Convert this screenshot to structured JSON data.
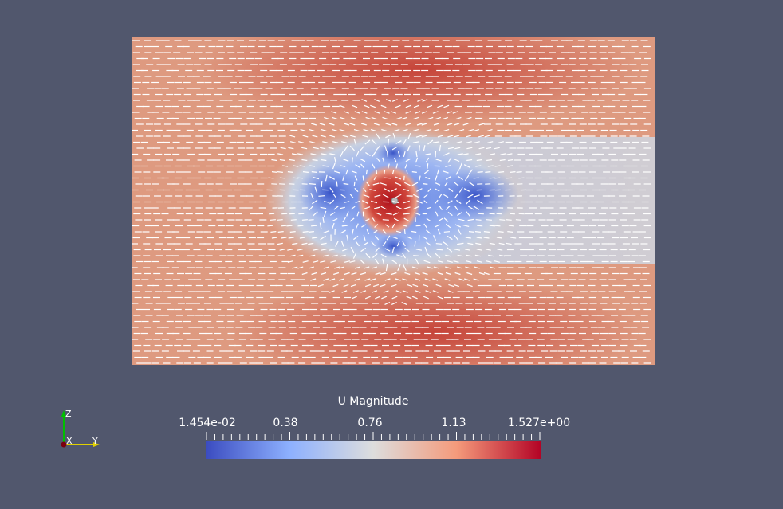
{
  "colorbar": {
    "title": "U Magnitude",
    "tick_labels": [
      "1.454e-02",
      "0.38",
      "0.76",
      "1.13",
      "1.527e+00"
    ],
    "min": 0.01454,
    "max": 1.527,
    "colors": {
      "low": "#3b4cc0",
      "mid": "#dddddd",
      "high": "#b40426"
    }
  },
  "axes": {
    "z_label": "Z",
    "x_label": "X",
    "y_label": "Y",
    "z_color": "#00c000",
    "y_color": "#e0d000",
    "x_color": "#7a0010"
  },
  "field": {
    "variable": "U Magnitude",
    "glyph_color": "#ffffff"
  }
}
